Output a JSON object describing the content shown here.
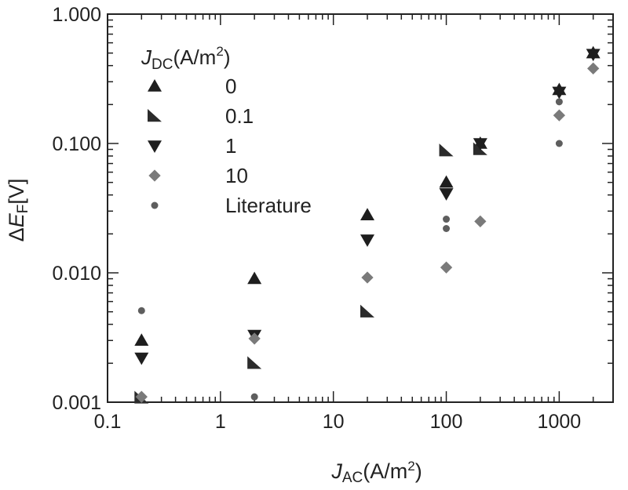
{
  "chart_data": {
    "type": "scatter",
    "x_scale": "log",
    "y_scale": "log",
    "xlim": [
      0.1,
      3000
    ],
    "ylim": [
      0.001,
      1.0
    ],
    "x_ticks": [
      {
        "value": 0.1,
        "label": "0.1"
      },
      {
        "value": 1,
        "label": "1"
      },
      {
        "value": 10,
        "label": "10"
      },
      {
        "value": 100,
        "label": "100"
      },
      {
        "value": 1000,
        "label": "1000"
      }
    ],
    "y_ticks": [
      {
        "value": 0.001,
        "label": "0.001"
      },
      {
        "value": 0.01,
        "label": "0.010"
      },
      {
        "value": 0.1,
        "label": "0.100"
      },
      {
        "value": 1.0,
        "label": "1.000"
      }
    ],
    "xlabel": {
      "main": "J",
      "sub": "AC",
      "unit": "(A/m",
      "sup": "2",
      "close": ")"
    },
    "ylabel": {
      "prefix": "Δ",
      "main": "E",
      "sub": "F",
      "unit": "[V]"
    },
    "legend": {
      "title": {
        "main": "J",
        "sub": "DC",
        "unit": "(A/m",
        "sup": "2",
        "close": ")"
      },
      "position": "top-left"
    },
    "grid": false,
    "series": [
      {
        "name": "0",
        "marker": "triangle-up",
        "color": "#1e1e1e",
        "points": [
          [
            0.2,
            0.003
          ],
          [
            2,
            0.009
          ],
          [
            20,
            0.028
          ],
          [
            100,
            0.05
          ],
          [
            200,
            0.1
          ],
          [
            1000,
            0.26
          ],
          [
            2000,
            0.5
          ]
        ]
      },
      {
        "name": "0.1",
        "marker": "right-triangle",
        "color": "#2b2b2b",
        "points": [
          [
            0.2,
            0.00108
          ],
          [
            2,
            0.002
          ],
          [
            20,
            0.005
          ],
          [
            100,
            0.088
          ],
          [
            200,
            0.09
          ]
        ]
      },
      {
        "name": "1",
        "marker": "triangle-down",
        "color": "#1e1e1e",
        "points": [
          [
            0.2,
            0.0022
          ],
          [
            2,
            0.0033
          ],
          [
            20,
            0.018
          ],
          [
            100,
            0.041
          ],
          [
            200,
            0.1
          ],
          [
            1000,
            0.25
          ],
          [
            2000,
            0.49
          ]
        ]
      },
      {
        "name": "10",
        "marker": "diamond",
        "color": "#7a7a7a",
        "points": [
          [
            0.2,
            0.0011
          ],
          [
            2,
            0.0031
          ],
          [
            20,
            0.0092
          ],
          [
            100,
            0.011
          ],
          [
            200,
            0.025
          ],
          [
            1000,
            0.165
          ],
          [
            2000,
            0.38
          ]
        ]
      },
      {
        "name": "Literature",
        "marker": "circle",
        "color": "#5e5e5e",
        "points": [
          [
            0.2,
            0.0051
          ],
          [
            2,
            0.0011
          ],
          [
            100,
            0.026
          ],
          [
            100,
            0.022
          ],
          [
            1000,
            0.1
          ],
          [
            1000,
            0.21
          ]
        ]
      }
    ]
  }
}
